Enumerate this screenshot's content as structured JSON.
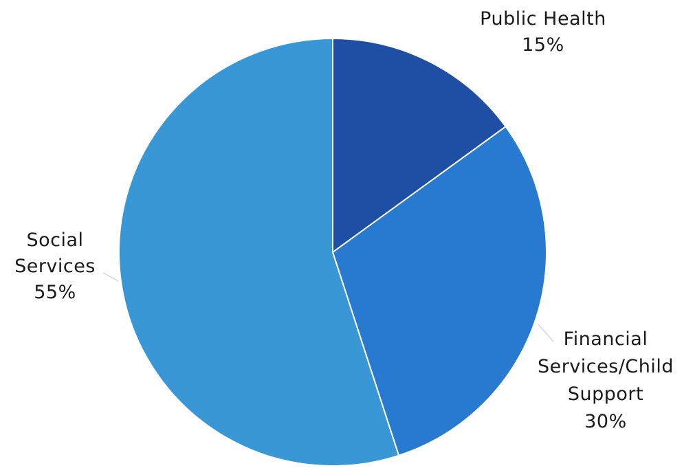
{
  "chart_data": {
    "type": "pie",
    "slices": [
      {
        "key": "public_health",
        "label_lines": [
          "Public Health"
        ],
        "percent_label": "15%",
        "value": 15,
        "color": "#1f4ea5"
      },
      {
        "key": "financial_services",
        "label_lines": [
          "Financial",
          "Services/Child",
          "Support"
        ],
        "percent_label": "30%",
        "value": 30,
        "color": "#2879d0"
      },
      {
        "key": "social_services",
        "label_lines": [
          "Social",
          "Services"
        ],
        "percent_label": "55%",
        "value": 55,
        "color": "#3a97d6"
      }
    ],
    "start_angle": "12 o'clock",
    "direction": "clockwise",
    "legend": "none",
    "data_labels": "outside with leader lines"
  }
}
